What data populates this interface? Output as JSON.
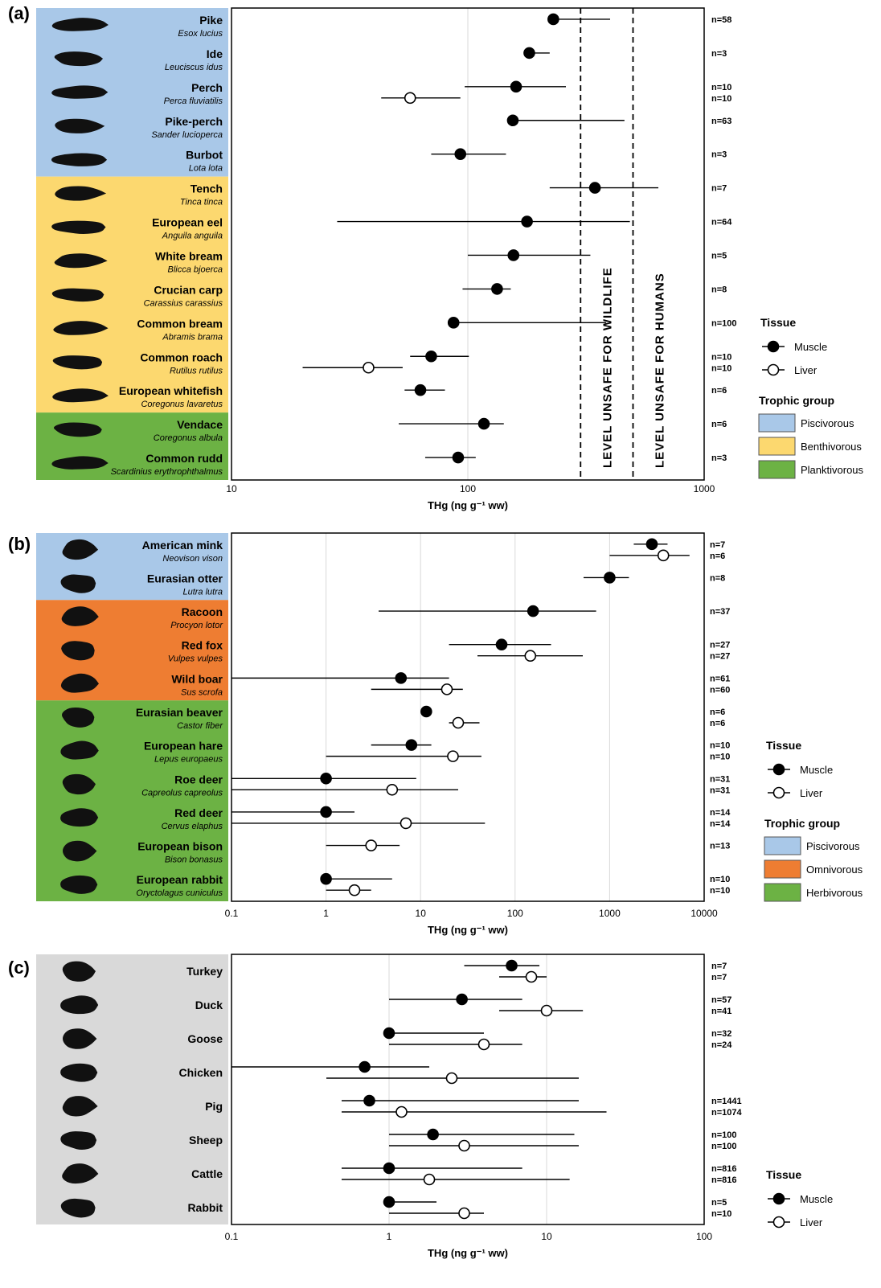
{
  "chart_data": [
    {
      "panel": "(a)",
      "type": "scatter",
      "x_scale": "log",
      "xlim": [
        10,
        1000
      ],
      "ticks": [
        "10",
        "100",
        "1000"
      ],
      "xlabel": "THg (ng g⁻¹ ww)",
      "reference_lines": [
        {
          "value": 300,
          "label": "LEVEL UNSAFE FOR WILDLIFE"
        },
        {
          "value": 500,
          "label": "LEVEL UNSAFE FOR HUMANS"
        }
      ],
      "groups": [
        {
          "name": "Piscivorous",
          "color": "#a9c8e8"
        },
        {
          "name": "Benthivorous",
          "color": "#fcd86f"
        },
        {
          "name": "Planktivorous",
          "color": "#6cb244"
        }
      ],
      "legend": {
        "tissue_title": "Tissue",
        "muscle": "Muscle",
        "liver": "Liver",
        "group_title": "Trophic group",
        "group_labels": [
          "Piscivorous",
          "Benthivorous",
          "Planktivorous"
        ]
      },
      "species": [
        {
          "common": "Pike",
          "latin": "Esox lucius",
          "group": 0,
          "icon": "pike-silhouette-icon",
          "points": [
            {
              "tissue": "muscle",
              "value": 230,
              "low": 230,
              "high": 400,
              "n": "n=58"
            }
          ]
        },
        {
          "common": "Ide",
          "latin": "Leuciscus idus",
          "group": 0,
          "icon": "ide-silhouette-icon",
          "points": [
            {
              "tissue": "muscle",
              "value": 182,
              "low": 182,
              "high": 222,
              "n": "n=3"
            }
          ]
        },
        {
          "common": "Perch",
          "latin": "Perca fluviatilis",
          "group": 0,
          "icon": "perch-silhouette-icon",
          "points": [
            {
              "tissue": "muscle",
              "value": 160,
              "low": 97,
              "high": 260,
              "n": "n=10"
            },
            {
              "tissue": "liver",
              "value": 57,
              "low": 43,
              "high": 93,
              "n": "n=10"
            }
          ]
        },
        {
          "common": "Pike-perch",
          "latin": "Sander lucioperca",
          "group": 0,
          "icon": "pike-perch-silhouette-icon",
          "points": [
            {
              "tissue": "muscle",
              "value": 155,
              "low": 155,
              "high": 460,
              "n": "n=63"
            }
          ]
        },
        {
          "common": "Burbot",
          "latin": "Lota lota",
          "group": 0,
          "icon": "burbot-silhouette-icon",
          "points": [
            {
              "tissue": "muscle",
              "value": 93,
              "low": 70,
              "high": 145,
              "n": "n=3"
            }
          ]
        },
        {
          "common": "Tench",
          "latin": "Tinca tinca",
          "group": 1,
          "icon": "tench-silhouette-icon",
          "points": [
            {
              "tissue": "muscle",
              "value": 345,
              "low": 222,
              "high": 640,
              "n": "n=7"
            }
          ]
        },
        {
          "common": "European eel",
          "latin": "Anguila  anguila",
          "group": 1,
          "icon": "eel-silhouette-icon",
          "points": [
            {
              "tissue": "muscle",
              "value": 178,
              "low": 28,
              "high": 485,
              "n": "n=64"
            }
          ]
        },
        {
          "common": "White bream",
          "latin": "Blicca bjoerca",
          "group": 1,
          "icon": "white-bream-silhouette-icon",
          "points": [
            {
              "tissue": "muscle",
              "value": 156,
              "low": 100,
              "high": 330,
              "n": "n=5"
            }
          ]
        },
        {
          "common": "Crucian carp",
          "latin": "Carassius carassius",
          "group": 1,
          "icon": "crucian-carp-silhouette-icon",
          "points": [
            {
              "tissue": "muscle",
              "value": 133,
              "low": 95,
              "high": 152,
              "n": "n=8"
            }
          ]
        },
        {
          "common": "Common bream",
          "latin": "Abramis brama",
          "group": 1,
          "icon": "common-bream-silhouette-icon",
          "points": [
            {
              "tissue": "muscle",
              "value": 87,
              "low": 87,
              "high": 385,
              "n": "n=100"
            }
          ]
        },
        {
          "common": "Common roach",
          "latin": "Rutilus rutilus",
          "group": 1,
          "icon": "roach-silhouette-icon",
          "points": [
            {
              "tissue": "muscle",
              "value": 70,
              "low": 57,
              "high": 101,
              "n": "n=10"
            },
            {
              "tissue": "liver",
              "value": 38,
              "low": 20,
              "high": 53,
              "n": "n=10"
            }
          ]
        },
        {
          "common": "European whitefish",
          "latin": "Coregonus  lavaretus",
          "group": 1,
          "icon": "whitefish-silhouette-icon",
          "points": [
            {
              "tissue": "muscle",
              "value": 63,
              "low": 54,
              "high": 80,
              "n": "n=6"
            }
          ]
        },
        {
          "common": "Vendace",
          "latin": "Coregonus  albula",
          "group": 2,
          "icon": "vendace-silhouette-icon",
          "points": [
            {
              "tissue": "muscle",
              "value": 117,
              "low": 51,
              "high": 142,
              "n": "n=6"
            }
          ]
        },
        {
          "common": "Common rudd",
          "latin": "Scardinius erythrophthalmus",
          "group": 2,
          "icon": "rudd-silhouette-icon",
          "points": [
            {
              "tissue": "muscle",
              "value": 91,
              "low": 66,
              "high": 108,
              "n": "n=3"
            }
          ]
        }
      ]
    },
    {
      "panel": "(b)",
      "type": "scatter",
      "x_scale": "log",
      "xlim": [
        0.1,
        10000
      ],
      "ticks": [
        "0.1",
        "1",
        "10",
        "100",
        "1000",
        "10000"
      ],
      "xlabel": "THg (ng g⁻¹ ww)",
      "reference_lines": [],
      "groups": [
        {
          "name": "Piscivorous",
          "color": "#a9c8e8"
        },
        {
          "name": "Omnivorous",
          "color": "#ee7d32"
        },
        {
          "name": "Herbivorous",
          "color": "#6cb244"
        }
      ],
      "legend": {
        "tissue_title": "Tissue",
        "muscle": "Muscle",
        "liver": "Liver",
        "group_title": "Trophic group",
        "group_labels": [
          "Piscivorous",
          "Omnivorous",
          "Herbivorous"
        ]
      },
      "species": [
        {
          "common": "American mink",
          "latin": "Neovison vison",
          "group": 0,
          "icon": "mink-silhouette-icon",
          "points": [
            {
              "tissue": "muscle",
              "value": 2800,
              "low": 1800,
              "high": 4100,
              "n": "n=7"
            },
            {
              "tissue": "liver",
              "value": 3700,
              "low": 1000,
              "high": 7000,
              "n": "n=6"
            }
          ]
        },
        {
          "common": "Eurasian otter",
          "latin": "Lutra lutra",
          "group": 0,
          "icon": "otter-silhouette-icon",
          "points": [
            {
              "tissue": "muscle",
              "value": 1000,
              "low": 530,
              "high": 1600,
              "n": "n=8"
            }
          ]
        },
        {
          "common": "Racoon",
          "latin": "Procyon lotor",
          "group": 1,
          "icon": "racoon-silhouette-icon",
          "points": [
            {
              "tissue": "muscle",
              "value": 155,
              "low": 3.6,
              "high": 720,
              "n": "n=37"
            }
          ]
        },
        {
          "common": "Red fox",
          "latin": "Vulpes vulpes",
          "group": 1,
          "icon": "fox-silhouette-icon",
          "points": [
            {
              "tissue": "muscle",
              "value": 72,
              "low": 20,
              "high": 240,
              "n": "n=27"
            },
            {
              "tissue": "liver",
              "value": 145,
              "low": 40,
              "high": 520,
              "n": "n=27"
            }
          ]
        },
        {
          "common": "Wild boar",
          "latin": "Sus scrofa",
          "group": 1,
          "icon": "boar-silhouette-icon",
          "points": [
            {
              "tissue": "muscle",
              "value": 6.2,
              "low": 0.1,
              "high": 20,
              "n": "n=61"
            },
            {
              "tissue": "liver",
              "value": 19,
              "low": 3,
              "high": 28,
              "n": "n=60"
            }
          ]
        },
        {
          "common": "Eurasian beaver",
          "latin": "Castor fiber",
          "group": 2,
          "icon": "beaver-silhouette-icon",
          "points": [
            {
              "tissue": "muscle",
              "value": 11.5,
              "low": 11.5,
              "high": 11.5,
              "n": "n=6"
            },
            {
              "tissue": "liver",
              "value": 25,
              "low": 20,
              "high": 42,
              "n": "n=6"
            }
          ]
        },
        {
          "common": "European hare",
          "latin": "Lepus europaeus",
          "group": 2,
          "icon": "hare-silhouette-icon",
          "points": [
            {
              "tissue": "muscle",
              "value": 8,
              "low": 3,
              "high": 13,
              "n": "n=10"
            },
            {
              "tissue": "liver",
              "value": 22,
              "low": 1,
              "high": 44,
              "n": "n=10"
            }
          ]
        },
        {
          "common": "Roe deer",
          "latin": "Capreolus capreolus",
          "group": 2,
          "icon": "roe-deer-silhouette-icon",
          "points": [
            {
              "tissue": "muscle",
              "value": 1,
              "low": 0.1,
              "high": 9,
              "n": "n=31"
            },
            {
              "tissue": "liver",
              "value": 5,
              "low": 0.1,
              "high": 25,
              "n": "n=31"
            }
          ]
        },
        {
          "common": "Red deer",
          "latin": "Cervus elaphus",
          "group": 2,
          "icon": "red-deer-silhouette-icon",
          "points": [
            {
              "tissue": "muscle",
              "value": 1,
              "low": 0.1,
              "high": 2,
              "n": "n=14"
            },
            {
              "tissue": "liver",
              "value": 7,
              "low": 0.1,
              "high": 48,
              "n": "n=14"
            }
          ]
        },
        {
          "common": "European bison",
          "latin": "Bison bonasus",
          "group": 2,
          "icon": "bison-silhouette-icon",
          "points": [
            {
              "tissue": "liver",
              "value": 3,
              "low": 1,
              "high": 6,
              "n": "n=13"
            }
          ]
        },
        {
          "common": "European rabbit",
          "latin": "Oryctolagus cuniculus",
          "group": 2,
          "icon": "rabbit-silhouette-icon",
          "points": [
            {
              "tissue": "muscle",
              "value": 1,
              "low": 1,
              "high": 5,
              "n": "n=10"
            },
            {
              "tissue": "liver",
              "value": 2,
              "low": 1,
              "high": 3,
              "n": "n=10"
            }
          ]
        }
      ]
    },
    {
      "panel": "(c)",
      "type": "scatter",
      "x_scale": "log",
      "xlim": [
        0.1,
        100
      ],
      "ticks": [
        "0.1",
        "1",
        "10",
        "100"
      ],
      "xlabel": "THg (ng g⁻¹ ww)",
      "reference_lines": [],
      "groups": [
        {
          "name": "",
          "color": "#d9d9d9"
        }
      ],
      "legend": {
        "tissue_title": "Tissue",
        "muscle": "Muscle",
        "liver": "Liver",
        "group_title": "",
        "group_labels": []
      },
      "species": [
        {
          "common": "Turkey",
          "latin": "",
          "group": 0,
          "icon": "turkey-silhouette-icon",
          "points": [
            {
              "tissue": "muscle",
              "value": 6,
              "low": 3,
              "high": 9,
              "n": "n=7"
            },
            {
              "tissue": "liver",
              "value": 8,
              "low": 5,
              "high": 10,
              "n": "n=7"
            }
          ]
        },
        {
          "common": "Duck",
          "latin": "",
          "group": 0,
          "icon": "duck-silhouette-icon",
          "points": [
            {
              "tissue": "muscle",
              "value": 2.9,
              "low": 1,
              "high": 7,
              "n": "n=57"
            },
            {
              "tissue": "liver",
              "value": 10,
              "low": 5,
              "high": 17,
              "n": "n=41"
            }
          ]
        },
        {
          "common": "Goose",
          "latin": "",
          "group": 0,
          "icon": "goose-silhouette-icon",
          "points": [
            {
              "tissue": "muscle",
              "value": 1,
              "low": 1,
              "high": 4,
              "n": "n=32"
            },
            {
              "tissue": "liver",
              "value": 4,
              "low": 1,
              "high": 7,
              "n": "n=24"
            }
          ]
        },
        {
          "common": "Chicken",
          "latin": "",
          "group": 0,
          "icon": "chicken-silhouette-icon",
          "points": [
            {
              "tissue": "muscle",
              "value": 0.7,
              "low": 0.1,
              "high": 1.8,
              "n": ""
            },
            {
              "tissue": "liver",
              "value": 2.5,
              "low": 0.4,
              "high": 16,
              "n": ""
            }
          ]
        },
        {
          "common": "Pig",
          "latin": "",
          "group": 0,
          "icon": "pig-silhouette-icon",
          "points": [
            {
              "tissue": "muscle",
              "value": 0.75,
              "low": 0.5,
              "high": 16,
              "n": "n=1441"
            },
            {
              "tissue": "liver",
              "value": 1.2,
              "low": 0.5,
              "high": 24,
              "n": "n=1074"
            }
          ]
        },
        {
          "common": "Sheep",
          "latin": "",
          "group": 0,
          "icon": "sheep-silhouette-icon",
          "points": [
            {
              "tissue": "muscle",
              "value": 1.9,
              "low": 1,
              "high": 15,
              "n": "n=100"
            },
            {
              "tissue": "liver",
              "value": 3,
              "low": 1,
              "high": 16,
              "n": "n=100"
            }
          ]
        },
        {
          "common": "Cattle",
          "latin": "",
          "group": 0,
          "icon": "cattle-silhouette-icon",
          "points": [
            {
              "tissue": "muscle",
              "value": 1,
              "low": 0.5,
              "high": 7,
              "n": "n=816"
            },
            {
              "tissue": "liver",
              "value": 1.8,
              "low": 0.5,
              "high": 14,
              "n": "n=816"
            }
          ]
        },
        {
          "common": "Rabbit",
          "latin": "",
          "group": 0,
          "icon": "rabbit-silhouette-icon",
          "points": [
            {
              "tissue": "muscle",
              "value": 1,
              "low": 1,
              "high": 2,
              "n": "n=5"
            },
            {
              "tissue": "liver",
              "value": 3,
              "low": 1,
              "high": 4,
              "n": "n=10"
            }
          ]
        }
      ]
    }
  ]
}
